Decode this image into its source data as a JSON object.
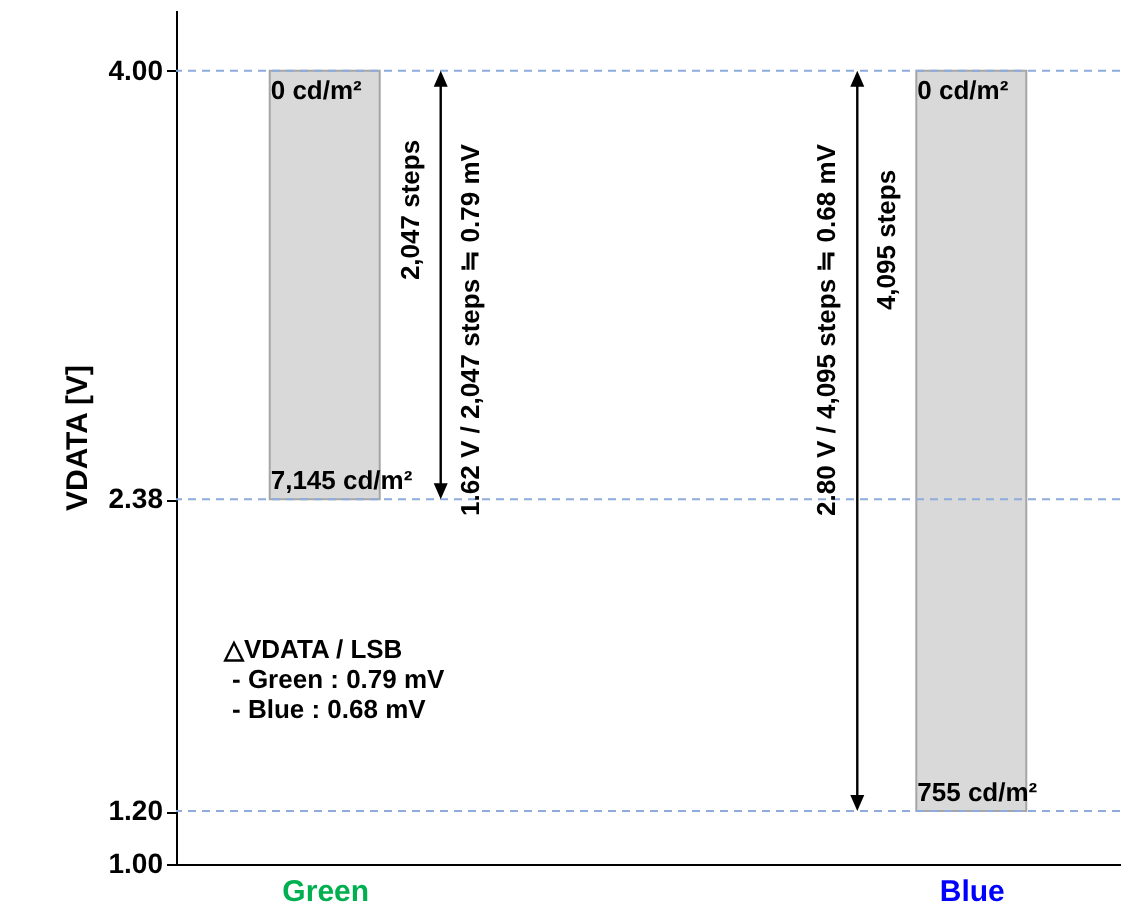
{
  "chart_data": {
    "type": "bar",
    "categories": [
      "Green",
      "Blue"
    ],
    "base": [
      2.38,
      1.2
    ],
    "values": [
      1.62,
      2.8
    ],
    "color": "#d9d9d9",
    "ylabel": "VDATA [V]",
    "ylim": [
      1.0,
      4.23
    ],
    "yticks": [
      {
        "value": 1,
        "label": "1.00"
      },
      {
        "value": 1.2,
        "label": "1.20"
      },
      {
        "value": 2.38,
        "label": "2.38"
      },
      {
        "value": 4,
        "label": "4.00"
      }
    ],
    "grid": false,
    "ref_lines": [
      {
        "axis": "y",
        "value": 4,
        "color": "#8faadc",
        "line_style": "dashed"
      },
      {
        "axis": "y",
        "value": 2.38,
        "color": "#8faadc",
        "line_style": "dashed"
      },
      {
        "axis": "y",
        "value": 1.2,
        "color": "#8faadc",
        "line_style": "dashed"
      }
    ],
    "annotations": [
      {
        "text": "0 cd/m²",
        "x": "Green",
        "y": 4
      },
      {
        "text": "7,145 cd/m²",
        "x": "Green",
        "y": 2.38
      },
      {
        "text": "0 cd/m²",
        "x": "Blue",
        "y": 4
      },
      {
        "text": "755 cd/m²",
        "x": "Blue",
        "y": 1.2
      },
      "2,047 steps",
      "1.62 V / 2,047 steps ≒ 0.79 mV",
      "2.80 V / 4,095 steps ≒ 0.68 mV",
      "4,095 steps",
      "△VDATA / LSB",
      "- Green : 0.79 mV",
      "- Blue : 0.68 mV"
    ]
  }
}
